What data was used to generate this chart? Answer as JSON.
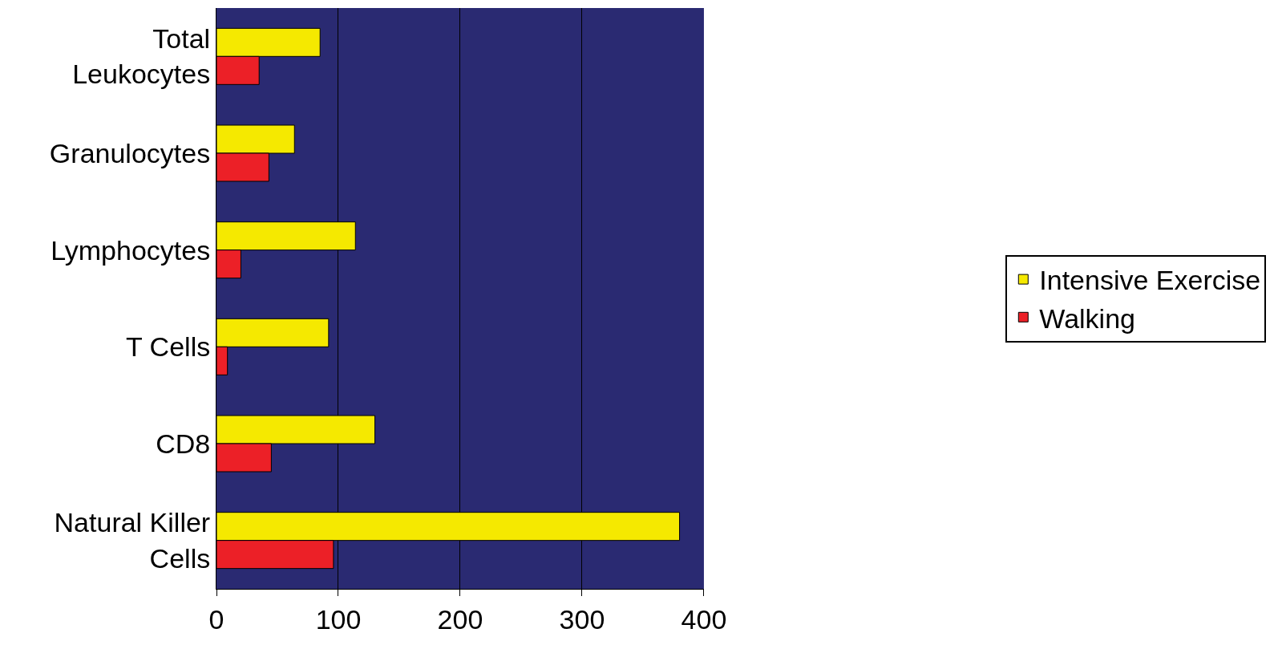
{
  "chart_data": {
    "type": "bar",
    "orientation": "horizontal",
    "categories": [
      "Total\nLeukocytes",
      "Granulocytes",
      "Lymphocytes",
      "T Cells",
      "CD8",
      "Natural Killer\nCells"
    ],
    "series": [
      {
        "name": "Intensive Exercise",
        "color": "#f5e900",
        "values": [
          85,
          64,
          114,
          92,
          130,
          380
        ]
      },
      {
        "name": "Walking",
        "color": "#ec2027",
        "values": [
          35,
          43,
          20,
          9,
          45,
          96
        ]
      }
    ],
    "xlim": [
      0,
      400
    ],
    "xticks": [
      0,
      100,
      200,
      300,
      400
    ],
    "grid": "x",
    "legend": "right"
  }
}
